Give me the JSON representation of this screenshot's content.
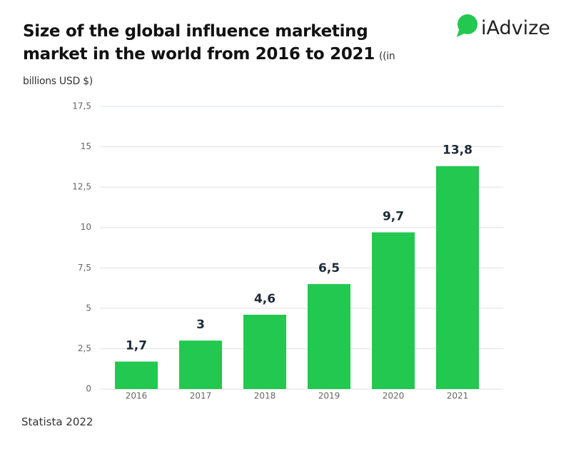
{
  "brand": "iAdvize",
  "source": "Statista 2022",
  "chart_data": {
    "type": "bar",
    "title": "Size of the global influence marketing market in the world from 2016 to 2021",
    "subtitle": "((in billions USD $)",
    "categories": [
      "2016",
      "2017",
      "2018",
      "2019",
      "2020",
      "2021"
    ],
    "values": [
      1.7,
      3,
      4.6,
      6.5,
      9.7,
      13.8
    ],
    "value_labels": [
      "1,7",
      "3",
      "4,6",
      "6,5",
      "9,7",
      "13,8"
    ],
    "color": "#22c84f",
    "ylim": [
      0,
      17.5
    ],
    "yticks": [
      0,
      {
        "value": 2.5,
        "label": "2,5"
      },
      5,
      {
        "value": 7.5,
        "label": "7,5"
      },
      10,
      {
        "value": 12.5,
        "label": "12,5"
      },
      15,
      {
        "value": 17.5,
        "label": "17,5"
      }
    ],
    "grid": true
  }
}
